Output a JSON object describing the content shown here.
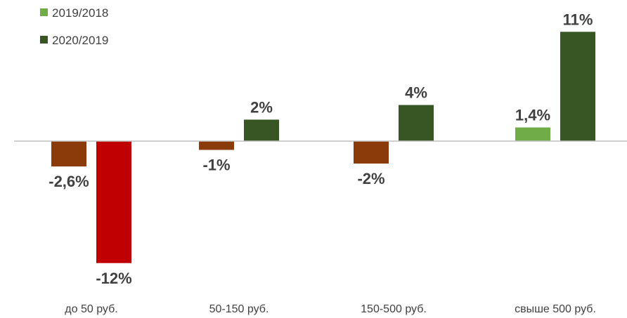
{
  "chart_data": {
    "type": "bar",
    "categories": [
      "до 50 руб.",
      "50-150 руб.",
      "150-500 руб.",
      "свыше 500 руб."
    ],
    "series": [
      {
        "name": "2019/2018",
        "values": [
          -2.6,
          -0.9,
          -2.3,
          1.4
        ],
        "labels": [
          "-2,6%",
          "-1%",
          "-2%",
          "1,4%"
        ],
        "legend_color": "#70AD47",
        "bar_colors": [
          "#8B3A0A",
          "#8B3A0A",
          "#8B3A0A",
          "#70AD47"
        ]
      },
      {
        "name": "2020/2019",
        "values": [
          -12.5,
          2.2,
          3.7,
          11.2
        ],
        "labels": [
          "-12%",
          "2%",
          "4%",
          "11%"
        ],
        "legend_color": "#375623",
        "bar_colors": [
          "#C00000",
          "#375623",
          "#375623",
          "#375623"
        ]
      }
    ],
    "title": "",
    "xlabel": "",
    "ylabel": "",
    "ylim": [
      -13,
      12
    ],
    "grid": false,
    "legend_position": "top-left",
    "axis_color": "#BFBFBF"
  }
}
